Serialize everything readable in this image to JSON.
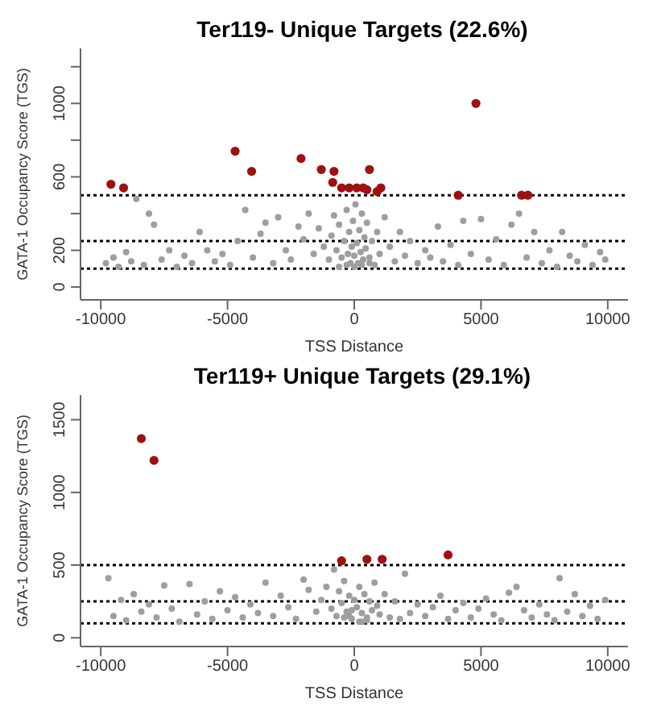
{
  "chart_data": [
    {
      "type": "scatter",
      "title": "Ter119- Unique Targets (22.6%)",
      "xlabel": "TSS Distance",
      "ylabel": "GATA-1 Occupancy Score (TGS)",
      "xlim": [
        -10800,
        10800
      ],
      "xticks": [
        -10000,
        -5000,
        0,
        5000,
        10000
      ],
      "ylim": [
        -70,
        1300
      ],
      "yticks": [
        0,
        200,
        {
          "value": 400,
          "label": null
        },
        600,
        {
          "value": 800,
          "label": null
        },
        1000,
        {
          "value": 1200,
          "label": null
        }
      ],
      "marker": "circle",
      "grid": false,
      "legend": false,
      "ref_lines": [
        {
          "axis": "y",
          "value": 500,
          "color": "#000000",
          "line_style": "dotted"
        },
        {
          "axis": "y",
          "value": 250,
          "color": "#000000",
          "line_style": "dotted"
        },
        {
          "axis": "y",
          "value": 100,
          "color": "#000000",
          "line_style": "dotted"
        }
      ],
      "series": [
        {
          "color": "#9e9e9e",
          "x": [
            -9800,
            -9500,
            -9300,
            -9000,
            -8800,
            -8600,
            -8300,
            -8100,
            -7900,
            -7600,
            -7300,
            -7000,
            -6700,
            -6400,
            -6100,
            -5800,
            -5500,
            -5200,
            -4900,
            -4600,
            -4300,
            -4000,
            -3700,
            -3500,
            -3200,
            -3000,
            -2700,
            -2500,
            -2200,
            -2000,
            -1800,
            -1600,
            -1400,
            -1200,
            -1000,
            -900,
            -800,
            -700,
            -600,
            -500,
            -400,
            -300,
            -250,
            -200,
            -150,
            -100,
            -50,
            0,
            50,
            100,
            150,
            200,
            250,
            300,
            350,
            400,
            450,
            500,
            600,
            700,
            800,
            900,
            1000,
            1200,
            1400,
            1600,
            1800,
            2000,
            2200,
            2500,
            2800,
            3000,
            3300,
            3500,
            3800,
            4100,
            4300,
            4600,
            5000,
            5300,
            5600,
            5900,
            6200,
            6500,
            6800,
            7100,
            7400,
            7700,
            8000,
            8200,
            8500,
            8800,
            9100,
            9400,
            9700,
            9900,
            -300,
            0,
            300,
            -600,
            600
          ],
          "values": [
            130,
            160,
            110,
            190,
            140,
            480,
            120,
            400,
            340,
            150,
            200,
            110,
            170,
            130,
            300,
            200,
            140,
            180,
            120,
            250,
            420,
            160,
            290,
            350,
            130,
            380,
            200,
            150,
            330,
            260,
            400,
            180,
            320,
            220,
            150,
            280,
            390,
            200,
            340,
            160,
            250,
            420,
            180,
            300,
            130,
            220,
            360,
            170,
            450,
            240,
            130,
            310,
            190,
            400,
            150,
            270,
            210,
            350,
            160,
            250,
            120,
            300,
            180,
            380,
            220,
            140,
            300,
            170,
            250,
            130,
            200,
            160,
            330,
            140,
            230,
            120,
            360,
            180,
            370,
            150,
            260,
            120,
            340,
            400,
            160,
            300,
            130,
            200,
            110,
            300,
            170,
            140,
            230,
            120,
            190,
            150,
            120,
            110,
            120,
            110,
            130
          ]
        },
        {
          "color": "#a01010",
          "x": [
            -9600,
            -9100,
            -4700,
            -4050,
            -2100,
            -1300,
            -850,
            -800,
            -500,
            -200,
            100,
            350,
            500,
            600,
            900,
            1050,
            4100,
            4800,
            6600,
            6850
          ],
          "values": [
            560,
            540,
            740,
            630,
            700,
            640,
            570,
            630,
            540,
            540,
            540,
            540,
            530,
            640,
            520,
            540,
            500,
            1000,
            500,
            500
          ]
        }
      ]
    },
    {
      "type": "scatter",
      "title": "Ter119+ Unique Targets (29.1%)",
      "xlabel": "TSS Distance",
      "ylabel": "GATA-1 Occupancy Score (TGS)",
      "xlim": [
        -10800,
        10800
      ],
      "xticks": [
        -10000,
        -5000,
        0,
        5000,
        10000
      ],
      "ylim": [
        -60,
        1670
      ],
      "yticks": [
        0,
        500,
        1000,
        1500
      ],
      "marker": "circle",
      "grid": false,
      "legend": false,
      "ref_lines": [
        {
          "axis": "y",
          "value": 500,
          "color": "#000000",
          "line_style": "dotted"
        },
        {
          "axis": "y",
          "value": 250,
          "color": "#000000",
          "line_style": "dotted"
        },
        {
          "axis": "y",
          "value": 100,
          "color": "#000000",
          "line_style": "dotted"
        }
      ],
      "series": [
        {
          "color": "#9e9e9e",
          "x": [
            -9700,
            -9500,
            -9200,
            -9000,
            -8700,
            -8400,
            -8100,
            -7800,
            -7500,
            -7200,
            -6900,
            -6500,
            -6200,
            -5900,
            -5600,
            -5300,
            -5000,
            -4700,
            -4400,
            -4100,
            -3800,
            -3500,
            -3200,
            -2900,
            -2600,
            -2300,
            -2000,
            -1800,
            -1500,
            -1300,
            -1100,
            -900,
            -800,
            -700,
            -600,
            -500,
            -400,
            -300,
            -200,
            -100,
            0,
            100,
            200,
            300,
            400,
            500,
            600,
            700,
            800,
            900,
            1000,
            1200,
            1400,
            1600,
            1800,
            2000,
            2200,
            2500,
            2800,
            3100,
            3400,
            3700,
            4000,
            4300,
            4600,
            4900,
            5200,
            5500,
            5800,
            6100,
            6400,
            6700,
            7000,
            7300,
            7600,
            7900,
            8100,
            8400,
            8700,
            9000,
            9300,
            9600,
            9900,
            -400,
            -100,
            200,
            500,
            -200,
            300
          ],
          "values": [
            410,
            150,
            260,
            120,
            300,
            180,
            230,
            140,
            360,
            200,
            110,
            370,
            160,
            250,
            130,
            320,
            190,
            280,
            140,
            230,
            170,
            380,
            150,
            290,
            210,
            130,
            400,
            330,
            180,
            260,
            350,
            200,
            470,
            150,
            320,
            240,
            390,
            180,
            290,
            130,
            260,
            210,
            350,
            170,
            300,
            140,
            250,
            190,
            380,
            220,
            160,
            300,
            140,
            250,
            130,
            440,
            170,
            230,
            150,
            210,
            290,
            130,
            190,
            240,
            140,
            200,
            270,
            160,
            120,
            310,
            350,
            190,
            140,
            230,
            160,
            120,
            410,
            180,
            300,
            150,
            220,
            130,
            260,
            140,
            190,
            110,
            120,
            150,
            110
          ]
        },
        {
          "color": "#a01010",
          "x": [
            -8400,
            -7900,
            -500,
            500,
            1100,
            3700
          ],
          "values": [
            1370,
            1220,
            530,
            540,
            540,
            570
          ]
        }
      ]
    }
  ]
}
